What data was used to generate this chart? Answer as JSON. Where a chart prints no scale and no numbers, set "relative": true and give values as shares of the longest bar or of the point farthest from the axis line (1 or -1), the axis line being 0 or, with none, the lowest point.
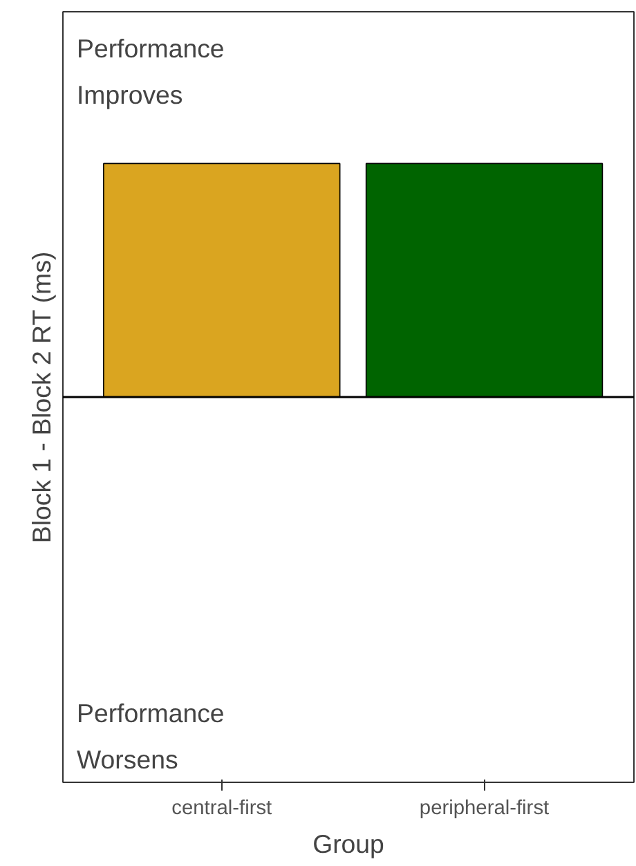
{
  "chart_data": {
    "type": "bar",
    "relative": true,
    "xlabel": "Group",
    "ylabel": "Block 1 - Block 2 RT (ms)",
    "categories": [
      "central-first",
      "peripheral-first"
    ],
    "values": [
      1,
      1
    ],
    "colors": [
      "#daa520",
      "#006400"
    ],
    "annotations": [
      "Performance\nImproves",
      "Performance\nWorsens"
    ],
    "grid": false
  }
}
